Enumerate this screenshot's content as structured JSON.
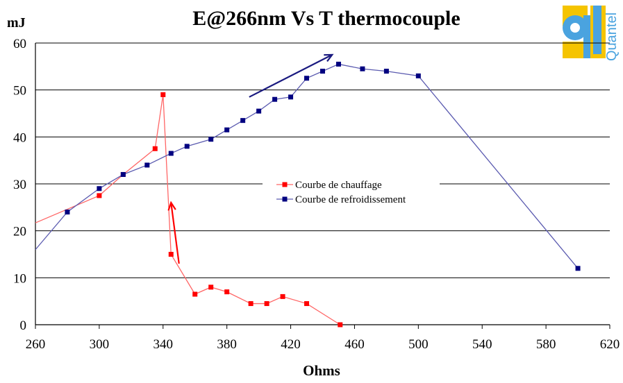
{
  "colors": {
    "heating": "#ff0000",
    "cooling": "#000080",
    "heating_line": "#ff6666",
    "cooling_line": "#5b5bb0",
    "grid": "#000000",
    "logo_yellow": "#f5c400",
    "logo_blue": "#4aa3df",
    "arrow_red": "#ff0000",
    "arrow_blue": "#1a1a80"
  },
  "logo": {
    "text": "Quantel",
    "icon": "quantel-logo-icon"
  },
  "chart_data": {
    "type": "line",
    "title": "E@266nm Vs T thermocouple",
    "xlabel": "Ohms",
    "ylabel": "mJ",
    "xlim": [
      260,
      620
    ],
    "ylim": [
      0,
      60
    ],
    "x_ticks": [
      "260",
      "300",
      "340",
      "380",
      "420",
      "460",
      "500",
      "540",
      "580",
      "620"
    ],
    "y_ticks": [
      "0",
      "10",
      "20",
      "30",
      "40",
      "50",
      "60"
    ],
    "grid": "horizontal",
    "legend_position": "center",
    "series": [
      {
        "name": "Courbe de chauffage",
        "marker": "square",
        "x": [
          260,
          300,
          315,
          335,
          340,
          345,
          360,
          370,
          380,
          395,
          405,
          415,
          430,
          451
        ],
        "y": [
          21.7,
          27.5,
          32,
          37.5,
          49,
          15,
          6.5,
          8,
          7,
          4.5,
          4.5,
          6,
          4.5,
          0
        ],
        "marker_from_index": 1
      },
      {
        "name": "Courbe de refroidissement",
        "marker": "square",
        "x": [
          260,
          280,
          300,
          315,
          330,
          345,
          355,
          370,
          380,
          390,
          400,
          410,
          420,
          430,
          440,
          450,
          465,
          480,
          500,
          600
        ],
        "y": [
          16,
          24,
          29,
          32,
          34,
          36.5,
          38,
          39.5,
          41.5,
          43.5,
          45.5,
          48,
          48.5,
          52.5,
          54,
          55.5,
          54.5,
          54,
          53,
          12
        ],
        "marker_from_index": 1
      }
    ],
    "annotations": [
      {
        "type": "arrow",
        "color": "red",
        "from": [
          350,
          13
        ],
        "to": [
          345,
          26
        ]
      },
      {
        "type": "arrow",
        "color": "blue",
        "from": [
          394,
          48.5
        ],
        "to": [
          446,
          57.5
        ]
      }
    ]
  }
}
